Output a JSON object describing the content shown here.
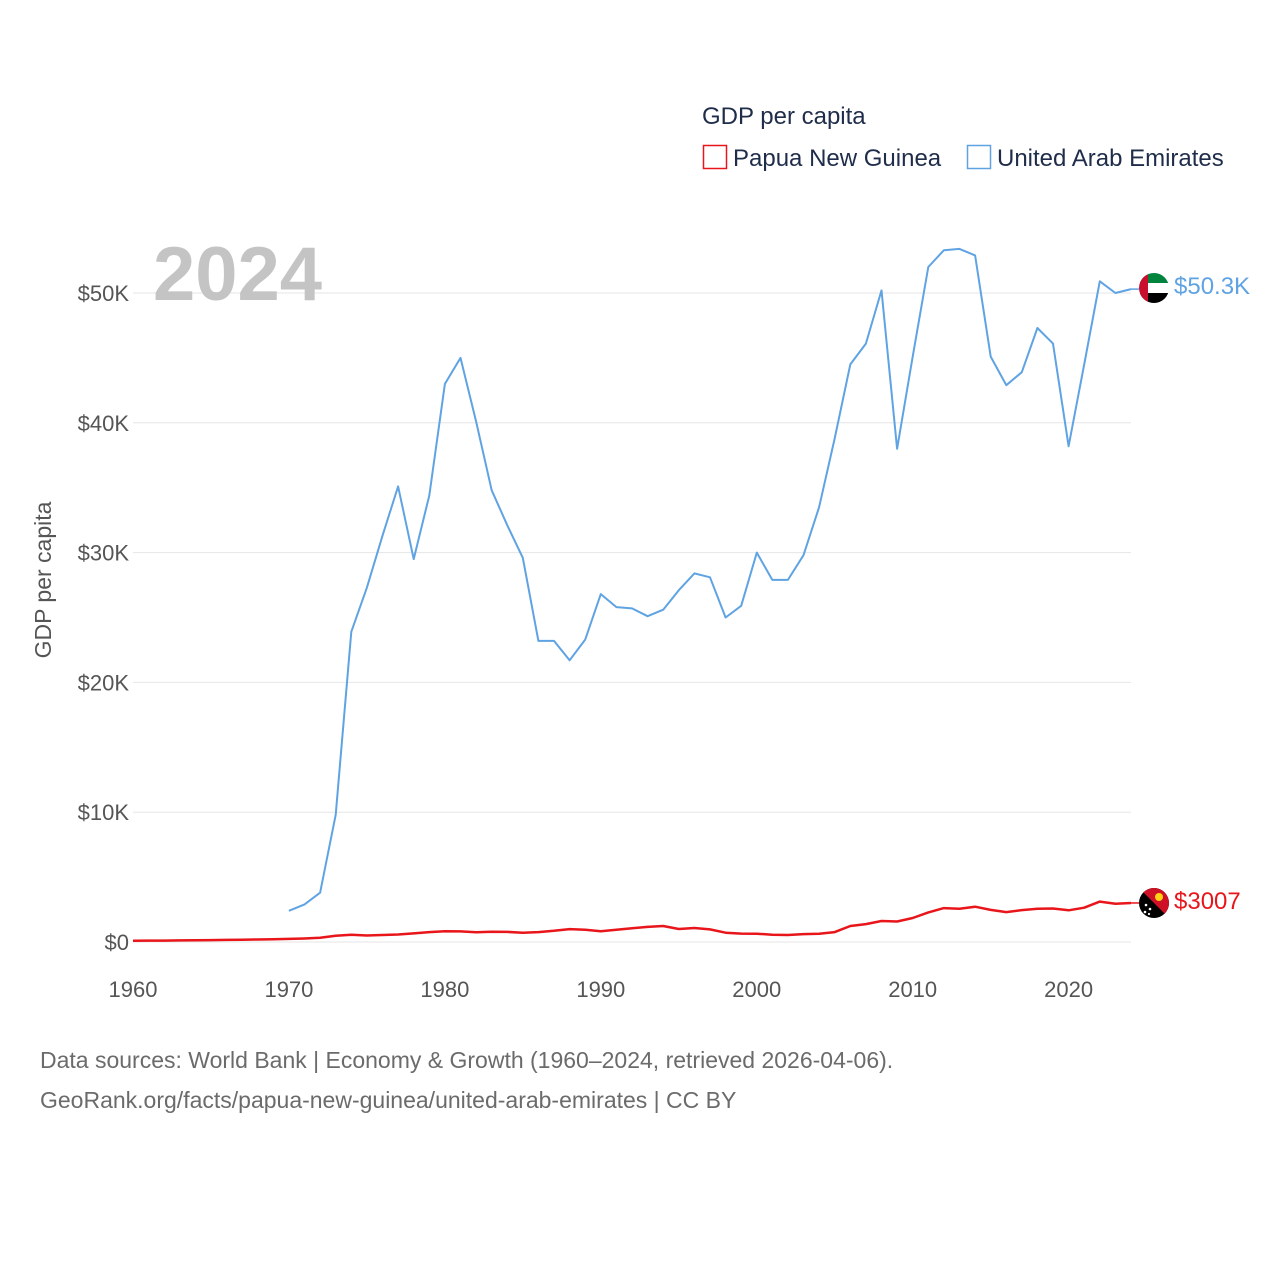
{
  "legend": {
    "title": "GDP per capita",
    "items": [
      {
        "label": "Papua New Guinea",
        "color": "#e8161b"
      },
      {
        "label": "United Arab Emirates",
        "color": "#5fa3e3"
      }
    ]
  },
  "year_watermark": "2024",
  "end_labels": {
    "png": "$3007",
    "uae": "$50.3K"
  },
  "flags": {
    "png": "papua-new-guinea-flag-icon",
    "uae": "united-arab-emirates-flag-icon"
  },
  "source": {
    "line1": "Data sources: World Bank | Economy & Growth (1960–2024, retrieved 2026-04-06).",
    "line2": "GeoRank.org/facts/papua-new-guinea/united-arab-emirates | CC BY"
  },
  "chart_data": {
    "type": "line",
    "title": "GDP per capita",
    "xlabel": "",
    "ylabel": "GDP per capita",
    "xlim": [
      1960,
      2024
    ],
    "ylim": [
      0,
      55000
    ],
    "x_ticks": [
      1960,
      1970,
      1980,
      1990,
      2000,
      2010,
      2020
    ],
    "x_tick_labels": [
      "1960",
      "1970",
      "1980",
      "1990",
      "2000",
      "2010",
      "2020"
    ],
    "y_ticks": [
      0,
      10000,
      20000,
      30000,
      40000,
      50000
    ],
    "y_tick_labels": [
      "$0",
      "$10K",
      "$20K",
      "$30K",
      "$40K",
      "$50K"
    ],
    "grid": true,
    "legend_position": "top-right",
    "series": [
      {
        "name": "Papua New Guinea",
        "color": "#e8161b",
        "points": [
          [
            1960,
            100
          ],
          [
            1961,
            105
          ],
          [
            1962,
            110
          ],
          [
            1963,
            120
          ],
          [
            1964,
            130
          ],
          [
            1965,
            145
          ],
          [
            1966,
            160
          ],
          [
            1967,
            175
          ],
          [
            1968,
            190
          ],
          [
            1969,
            210
          ],
          [
            1970,
            240
          ],
          [
            1971,
            270
          ],
          [
            1972,
            320
          ],
          [
            1973,
            480
          ],
          [
            1974,
            560
          ],
          [
            1975,
            500
          ],
          [
            1976,
            540
          ],
          [
            1977,
            580
          ],
          [
            1978,
            660
          ],
          [
            1979,
            760
          ],
          [
            1980,
            830
          ],
          [
            1981,
            820
          ],
          [
            1982,
            750
          ],
          [
            1983,
            790
          ],
          [
            1984,
            780
          ],
          [
            1985,
            720
          ],
          [
            1986,
            760
          ],
          [
            1987,
            860
          ],
          [
            1988,
            990
          ],
          [
            1989,
            940
          ],
          [
            1990,
            830
          ],
          [
            1991,
            950
          ],
          [
            1992,
            1060
          ],
          [
            1993,
            1160
          ],
          [
            1994,
            1230
          ],
          [
            1995,
            1000
          ],
          [
            1996,
            1080
          ],
          [
            1997,
            970
          ],
          [
            1998,
            720
          ],
          [
            1999,
            650
          ],
          [
            2000,
            640
          ],
          [
            2001,
            560
          ],
          [
            2002,
            540
          ],
          [
            2003,
            610
          ],
          [
            2004,
            640
          ],
          [
            2005,
            760
          ],
          [
            2006,
            1230
          ],
          [
            2007,
            1380
          ],
          [
            2008,
            1620
          ],
          [
            2009,
            1580
          ],
          [
            2010,
            1850
          ],
          [
            2011,
            2280
          ],
          [
            2012,
            2610
          ],
          [
            2013,
            2560
          ],
          [
            2014,
            2720
          ],
          [
            2015,
            2470
          ],
          [
            2016,
            2300
          ],
          [
            2017,
            2460
          ],
          [
            2018,
            2560
          ],
          [
            2019,
            2580
          ],
          [
            2020,
            2440
          ],
          [
            2021,
            2640
          ],
          [
            2022,
            3110
          ],
          [
            2023,
            2940
          ],
          [
            2024,
            3007
          ]
        ]
      },
      {
        "name": "United Arab Emirates",
        "color": "#5fa3e3",
        "points": [
          [
            1970,
            2400
          ],
          [
            1971,
            2900
          ],
          [
            1972,
            3800
          ],
          [
            1973,
            9800
          ],
          [
            1974,
            23900
          ],
          [
            1975,
            27300
          ],
          [
            1976,
            31300
          ],
          [
            1977,
            35100
          ],
          [
            1978,
            29500
          ],
          [
            1979,
            34400
          ],
          [
            1980,
            43000
          ],
          [
            1981,
            45000
          ],
          [
            1982,
            40100
          ],
          [
            1983,
            34800
          ],
          [
            1984,
            32100
          ],
          [
            1985,
            29600
          ],
          [
            1986,
            23200
          ],
          [
            1987,
            23200
          ],
          [
            1988,
            21700
          ],
          [
            1989,
            23300
          ],
          [
            1990,
            26800
          ],
          [
            1991,
            25800
          ],
          [
            1992,
            25700
          ],
          [
            1993,
            25100
          ],
          [
            1994,
            25600
          ],
          [
            1995,
            27100
          ],
          [
            1996,
            28400
          ],
          [
            1997,
            28100
          ],
          [
            1998,
            25000
          ],
          [
            1999,
            25900
          ],
          [
            2000,
            30000
          ],
          [
            2001,
            27900
          ],
          [
            2002,
            27900
          ],
          [
            2003,
            29800
          ],
          [
            2004,
            33500
          ],
          [
            2005,
            38800
          ],
          [
            2006,
            44500
          ],
          [
            2007,
            46100
          ],
          [
            2008,
            50200
          ],
          [
            2009,
            38000
          ],
          [
            2010,
            45100
          ],
          [
            2011,
            52000
          ],
          [
            2012,
            53300
          ],
          [
            2013,
            53400
          ],
          [
            2014,
            52900
          ],
          [
            2015,
            45100
          ],
          [
            2016,
            42900
          ],
          [
            2017,
            43900
          ],
          [
            2018,
            47300
          ],
          [
            2019,
            46100
          ],
          [
            2020,
            38200
          ],
          [
            2021,
            44500
          ],
          [
            2022,
            50900
          ],
          [
            2023,
            50000
          ],
          [
            2024,
            50300
          ]
        ]
      }
    ]
  }
}
